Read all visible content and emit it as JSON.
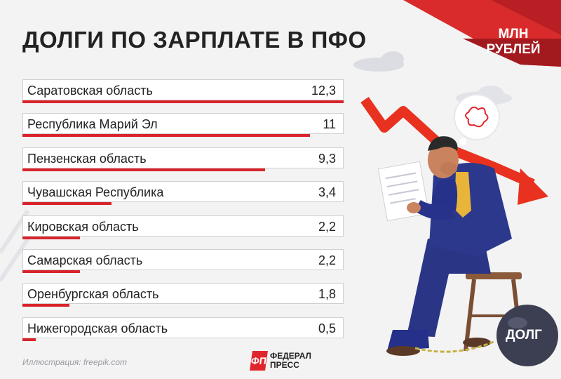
{
  "title": "ДОЛГИ ПО ЗАРПЛАТЕ В ПФО",
  "unit_label": [
    "МЛН",
    "РУБЛЕЙ"
  ],
  "ball_label": "ДОЛГ",
  "credit": "Иллюстрация: freepik.com",
  "logo": {
    "mark": "ФП",
    "line1": "ФЕДЕРАЛ",
    "line2": "ПРЕСС"
  },
  "colors": {
    "accent": "#d9232a",
    "suit": "#2a3585",
    "background": "#f3f3f4"
  },
  "chart_data": {
    "type": "bar",
    "orientation": "horizontal",
    "title": "ДОЛГИ ПО ЗАРПЛАТЕ В ПФО",
    "unit": "МЛН РУБЛЕЙ",
    "categories": [
      "Саратовская область",
      "Республика Марий Эл",
      "Пензенская область",
      "Чувашская Республика",
      "Кировская область",
      "Самарская область",
      "Оренбургская область",
      "Нижегородская область"
    ],
    "values": [
      12.3,
      11,
      9.3,
      3.4,
      2.2,
      2.2,
      1.8,
      0.5
    ],
    "value_labels": [
      "12,3",
      "11",
      "9,3",
      "3,4",
      "2,2",
      "2,2",
      "1,8",
      "0,5"
    ],
    "xlim": [
      0,
      12.3
    ],
    "grid": false,
    "legend": "none"
  }
}
